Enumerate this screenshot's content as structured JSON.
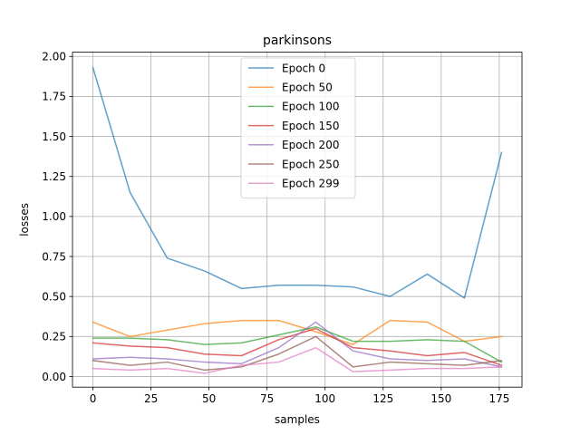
{
  "chart_data": {
    "type": "line",
    "title": "parkinsons",
    "xlabel": "samples",
    "ylabel": "losses",
    "xlim": [
      -8.8,
      184.8
    ],
    "ylim": [
      -0.0665,
      2.0265
    ],
    "x_ticks": [
      0,
      25,
      50,
      75,
      100,
      125,
      150,
      175
    ],
    "y_ticks": [
      0.0,
      0.25,
      0.5,
      0.75,
      1.0,
      1.25,
      1.5,
      1.75,
      2.0
    ],
    "x_tick_labels": [
      "0",
      "25",
      "50",
      "75",
      "100",
      "125",
      "150",
      "175"
    ],
    "y_tick_labels": [
      "0.00",
      "0.25",
      "0.50",
      "0.75",
      "1.00",
      "1.25",
      "1.50",
      "1.75",
      "2.00"
    ],
    "grid": true,
    "legend_position": "top-center",
    "x": [
      0,
      16,
      32,
      48,
      64,
      80,
      96,
      112,
      128,
      144,
      160,
      176
    ],
    "series": [
      {
        "name": "Epoch 0",
        "color": "#1f77b4",
        "values": [
          1.93,
          1.15,
          0.74,
          0.66,
          0.55,
          0.57,
          0.57,
          0.56,
          0.5,
          0.64,
          0.49,
          1.4
        ]
      },
      {
        "name": "Epoch 50",
        "color": "#ff7f0e",
        "values": [
          0.34,
          0.25,
          0.29,
          0.33,
          0.35,
          0.35,
          0.28,
          0.2,
          0.35,
          0.34,
          0.22,
          0.25
        ]
      },
      {
        "name": "Epoch 100",
        "color": "#2ca02c",
        "values": [
          0.24,
          0.24,
          0.23,
          0.2,
          0.21,
          0.26,
          0.31,
          0.22,
          0.22,
          0.23,
          0.22,
          0.09
        ]
      },
      {
        "name": "Epoch 150",
        "color": "#d62728",
        "values": [
          0.21,
          0.19,
          0.18,
          0.14,
          0.13,
          0.23,
          0.3,
          0.18,
          0.16,
          0.13,
          0.15,
          0.07
        ]
      },
      {
        "name": "Epoch 200",
        "color": "#9467bd",
        "values": [
          0.11,
          0.12,
          0.11,
          0.09,
          0.08,
          0.18,
          0.34,
          0.16,
          0.11,
          0.1,
          0.11,
          0.06
        ]
      },
      {
        "name": "Epoch 250",
        "color": "#8c564b",
        "values": [
          0.1,
          0.07,
          0.09,
          0.04,
          0.06,
          0.14,
          0.25,
          0.06,
          0.09,
          0.08,
          0.07,
          0.1
        ]
      },
      {
        "name": "Epoch 299",
        "color": "#e377c2",
        "values": [
          0.05,
          0.04,
          0.05,
          0.02,
          0.07,
          0.09,
          0.18,
          0.03,
          0.04,
          0.05,
          0.05,
          0.06
        ]
      }
    ]
  }
}
